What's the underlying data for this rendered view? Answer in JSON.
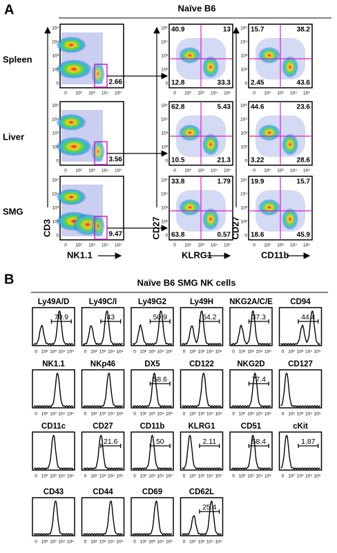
{
  "panel_a": {
    "label": "A",
    "title": "Naïve B6",
    "rows": [
      {
        "name": "Spleen",
        "gate": "2.66",
        "klrg1": [
          "40.9",
          "13",
          "12.8",
          "33.3"
        ],
        "cd11b": [
          "15.7",
          "38.2",
          "2.45",
          "43.6"
        ]
      },
      {
        "name": "Liver",
        "gate": "3.56",
        "klrg1": [
          "62.8",
          "5.43",
          "10.5",
          "21.3"
        ],
        "cd11b": [
          "44.6",
          "23.6",
          "3.22",
          "28.6"
        ]
      },
      {
        "name": "SMG",
        "gate": "9.47",
        "klrg1": [
          "33.8",
          "1.79",
          "63.8",
          "0.57"
        ],
        "cd11b": [
          "19.9",
          "15.7",
          "18.6",
          "45.9"
        ]
      }
    ],
    "x_labels": [
      "NK1.1",
      "KLRG1",
      "CD11b"
    ],
    "y_labels": [
      "CD3",
      "CD27",
      "CD27"
    ],
    "ticks": [
      "0",
      "10²",
      "10³",
      "10⁴",
      "10⁵"
    ],
    "yticks": [
      "10⁵",
      "10⁴",
      "10³",
      "10²",
      "0"
    ]
  },
  "panel_b": {
    "label": "B",
    "title": "Naïve B6 SMG NK cells",
    "markers": [
      {
        "name": "Ly49A/D",
        "gate": "70.9"
      },
      {
        "name": "Ly49C/I",
        "gate": "43"
      },
      {
        "name": "Ly49G2",
        "gate": "50.9"
      },
      {
        "name": "Ly49H",
        "gate": "64.2"
      },
      {
        "name": "NKG2A/C/E",
        "gate": "37.3"
      },
      {
        "name": "CD94",
        "gate": "44.4"
      },
      {
        "name": "NK1.1"
      },
      {
        "name": "NKp46"
      },
      {
        "name": "DX5",
        "gate": "58.6"
      },
      {
        "name": "CD122"
      },
      {
        "name": "NKG2D",
        "gate": "77.4"
      },
      {
        "name": "CD127"
      },
      {
        "name": "CD11c"
      },
      {
        "name": "CD27",
        "gate": "21.6"
      },
      {
        "name": "CD11b",
        "gate": "50"
      },
      {
        "name": "KLRG1",
        "gate": "2.11"
      },
      {
        "name": "CD51",
        "gate": "58.4"
      },
      {
        "name": "cKit",
        "gate": "1.87"
      },
      {
        "name": "CD43"
      },
      {
        "name": "CD44"
      },
      {
        "name": "CD69"
      },
      {
        "name": "CD62L",
        "gate": "25.4"
      }
    ],
    "ticks": [
      "0",
      "10²",
      "10³",
      "10⁴",
      "10⁵"
    ]
  }
}
